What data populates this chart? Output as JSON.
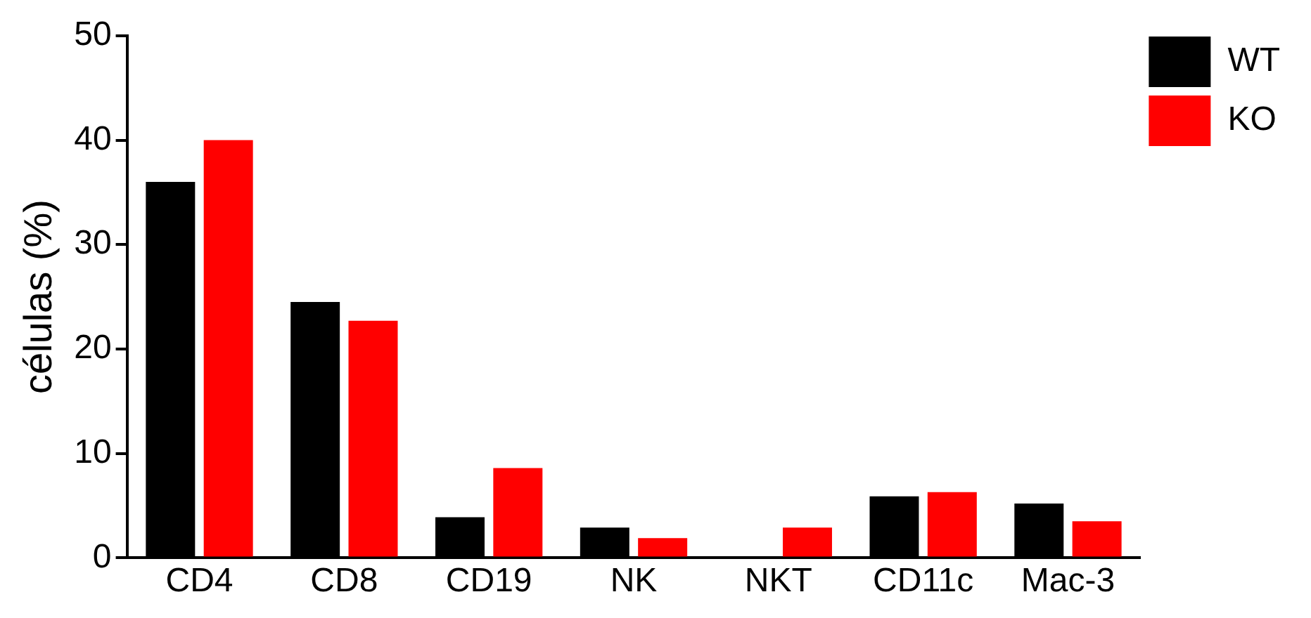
{
  "chart_data": {
    "type": "bar",
    "ylabel": "células (%)",
    "categories": [
      "CD4",
      "CD8",
      "CD19",
      "NK",
      "NKT",
      "CD11c",
      "Mac-3"
    ],
    "series": [
      {
        "name": "WT",
        "color": "#000000",
        "values": [
          36,
          24.5,
          3.9,
          2.9,
          0.1,
          5.9,
          5.2
        ]
      },
      {
        "name": "KO",
        "color": "#ff0000",
        "values": [
          40,
          22.7,
          8.6,
          1.9,
          2.9,
          6.3,
          3.5
        ]
      }
    ],
    "ylim": [
      0,
      50
    ],
    "yticks": [
      0,
      10,
      20,
      30,
      40,
      50
    ],
    "grid": false,
    "legend": "top right"
  }
}
